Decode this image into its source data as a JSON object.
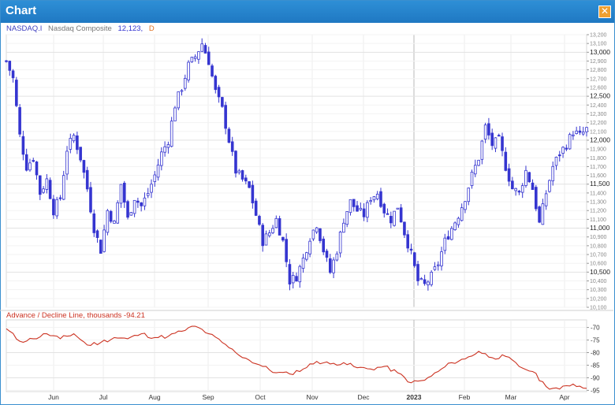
{
  "window": {
    "title": "Chart",
    "close_icon": "close-icon",
    "close_glyph": "✕",
    "border_color": "#3a8fcf",
    "titlebar_color": "#1f78c2"
  },
  "legend": {
    "symbol": "NASDAQ.I",
    "name": "Nasdaq Composite",
    "last": "12,123,",
    "period": "D"
  },
  "indicator": {
    "label": "Advance / Decline Line, thousands -94.21"
  },
  "chart_data": [
    {
      "type": "candlestick",
      "series": [
        {
          "name": "NASDAQ.I",
          "color": "#3535d0"
        }
      ],
      "x_axis_labels": [
        "Jun",
        "Jul",
        "Aug",
        "Sep",
        "Oct",
        "Nov",
        "Dec",
        "2023",
        "Feb",
        "Mar",
        "Apr"
      ],
      "ylim": [
        10100,
        13200
      ],
      "y_ticks": [
        10100,
        10200,
        10300,
        10400,
        10500,
        10600,
        10700,
        10800,
        10900,
        11000,
        11100,
        11200,
        11300,
        11400,
        11500,
        11600,
        11700,
        11800,
        11900,
        12000,
        12100,
        12200,
        12300,
        12400,
        12500,
        12600,
        12700,
        12800,
        12900,
        13000,
        13100,
        13200
      ],
      "y_tick_labels": [
        "10,100",
        "10,200",
        "10,300",
        "10,400",
        "10,500",
        "10,600",
        "10,700",
        "10,800",
        "10,900",
        "11,000",
        "11,100",
        "11,200",
        "11,300",
        "11,400",
        "11,500",
        "11,600",
        "11,700",
        "11,800",
        "11,900",
        "12,000",
        "12,100",
        "12,200",
        "12,300",
        "12,400",
        "12,500",
        "12,600",
        "12,700",
        "12,800",
        "12,900",
        "13,000",
        "13,100",
        "13,200"
      ],
      "y_major_ticks": [
        10500,
        11000,
        11500,
        12000,
        12500,
        13000
      ],
      "close_path": [
        [
          0,
          12900
        ],
        [
          2,
          12700
        ],
        [
          4,
          12050
        ],
        [
          6,
          11700
        ],
        [
          8,
          11800
        ],
        [
          10,
          11400
        ],
        [
          12,
          11550
        ],
        [
          14,
          11200
        ],
        [
          16,
          11350
        ],
        [
          18,
          11900
        ],
        [
          20,
          12050
        ],
        [
          22,
          11800
        ],
        [
          24,
          11450
        ],
        [
          26,
          11000
        ],
        [
          28,
          10750
        ],
        [
          30,
          11200
        ],
        [
          32,
          11050
        ],
        [
          34,
          11500
        ],
        [
          36,
          11100
        ],
        [
          38,
          11350
        ],
        [
          40,
          11250
        ],
        [
          42,
          11400
        ],
        [
          44,
          11600
        ],
        [
          46,
          11850
        ],
        [
          48,
          12000
        ],
        [
          50,
          12400
        ],
        [
          52,
          12600
        ],
        [
          54,
          12850
        ],
        [
          56,
          12950
        ],
        [
          58,
          13100
        ],
        [
          60,
          12900
        ],
        [
          62,
          12550
        ],
        [
          64,
          12350
        ],
        [
          66,
          12000
        ],
        [
          68,
          11650
        ],
        [
          70,
          11550
        ],
        [
          72,
          11450
        ],
        [
          74,
          11150
        ],
        [
          76,
          10850
        ],
        [
          78,
          10950
        ],
        [
          80,
          11100
        ],
        [
          82,
          10850
        ],
        [
          84,
          10400
        ],
        [
          86,
          10450
        ],
        [
          88,
          10650
        ],
        [
          90,
          10900
        ],
        [
          92,
          11050
        ],
        [
          94,
          10750
        ],
        [
          96,
          10500
        ],
        [
          98,
          10750
        ],
        [
          100,
          11100
        ],
        [
          102,
          11300
        ],
        [
          104,
          11200
        ],
        [
          106,
          11150
        ],
        [
          108,
          11350
        ],
        [
          110,
          11400
        ],
        [
          112,
          11200
        ],
        [
          114,
          11100
        ],
        [
          116,
          11250
        ],
        [
          118,
          10950
        ],
        [
          120,
          10700
        ],
        [
          122,
          10400
        ],
        [
          124,
          10350
        ],
        [
          126,
          10450
        ],
        [
          128,
          10600
        ],
        [
          130,
          10850
        ],
        [
          132,
          11000
        ],
        [
          134,
          11150
        ],
        [
          136,
          11350
        ],
        [
          138,
          11600
        ],
        [
          140,
          11800
        ],
        [
          142,
          12150
        ],
        [
          144,
          11950
        ],
        [
          146,
          12000
        ],
        [
          148,
          11700
        ],
        [
          150,
          11450
        ],
        [
          152,
          11400
        ],
        [
          154,
          11650
        ],
        [
          156,
          11450
        ],
        [
          158,
          11050
        ],
        [
          160,
          11400
        ],
        [
          162,
          11700
        ],
        [
          164,
          11850
        ],
        [
          166,
          11950
        ],
        [
          168,
          12100
        ],
        [
          170,
          12050
        ],
        [
          172,
          12123
        ]
      ],
      "x_range": [
        0,
        172
      ]
    },
    {
      "type": "line",
      "series": [
        {
          "name": "Advance / Decline Line",
          "color": "#cc3322"
        }
      ],
      "ylim": [
        -95.5,
        -67
      ],
      "y_ticks": [
        -70,
        -75,
        -80,
        -85,
        -90,
        -95
      ],
      "y_tick_labels": [
        "-70",
        "-75",
        "-80",
        "-85",
        "-90",
        "-95"
      ],
      "y_major_ticks": [
        -80,
        -90
      ],
      "x_range": [
        0,
        172
      ],
      "points": [
        [
          0,
          -70.5
        ],
        [
          4,
          -75.5
        ],
        [
          8,
          -74.5
        ],
        [
          12,
          -72.5
        ],
        [
          16,
          -74.5
        ],
        [
          20,
          -72.5
        ],
        [
          24,
          -77.0
        ],
        [
          28,
          -76.0
        ],
        [
          32,
          -74.0
        ],
        [
          36,
          -74.5
        ],
        [
          40,
          -72.5
        ],
        [
          44,
          -74.0
        ],
        [
          48,
          -73.5
        ],
        [
          52,
          -71.5
        ],
        [
          56,
          -69.5
        ],
        [
          60,
          -72.5
        ],
        [
          64,
          -76.0
        ],
        [
          68,
          -80.0
        ],
        [
          72,
          -83.0
        ],
        [
          76,
          -85.5
        ],
        [
          80,
          -88.0
        ],
        [
          84,
          -88.5
        ],
        [
          88,
          -86.5
        ],
        [
          92,
          -83.5
        ],
        [
          96,
          -84.5
        ],
        [
          100,
          -84.0
        ],
        [
          104,
          -86.0
        ],
        [
          108,
          -86.5
        ],
        [
          112,
          -85.5
        ],
        [
          116,
          -88.0
        ],
        [
          120,
          -92.0
        ],
        [
          124,
          -91.0
        ],
        [
          128,
          -87.5
        ],
        [
          132,
          -84.0
        ],
        [
          136,
          -82.5
        ],
        [
          140,
          -79.5
        ],
        [
          144,
          -82.0
        ],
        [
          148,
          -81.5
        ],
        [
          152,
          -85.5
        ],
        [
          156,
          -87.5
        ],
        [
          160,
          -93.5
        ],
        [
          164,
          -94.5
        ],
        [
          168,
          -92.5
        ],
        [
          172,
          -94.2
        ]
      ]
    }
  ]
}
